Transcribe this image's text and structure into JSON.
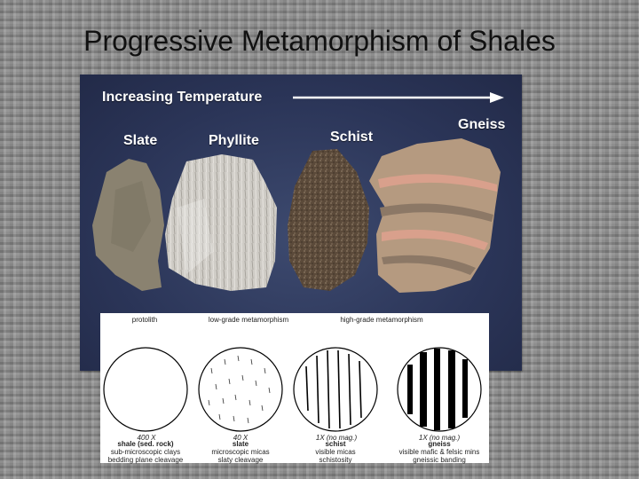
{
  "slide": {
    "title": "Progressive Metamorphism of Shales"
  },
  "photo": {
    "temperature_label": "Increasing Temperature",
    "rocks": [
      {
        "name": "Slate",
        "icon": "slate-rock-icon"
      },
      {
        "name": "Phyllite",
        "icon": "phyllite-rock-icon"
      },
      {
        "name": "Schist",
        "icon": "schist-rock-icon"
      },
      {
        "name": "Gneiss",
        "icon": "gneiss-rock-icon"
      }
    ]
  },
  "micrographs": {
    "headers": [
      "protolith",
      "low-grade metamorphism",
      "high-grade metamorphism"
    ],
    "items": [
      {
        "scale": "400 X",
        "name": "shale (sed. rock)",
        "line1": "sub-microscopic clays",
        "line2": "bedding plane cleavage"
      },
      {
        "scale": "40 X",
        "name": "slate",
        "line1": "microscopic micas",
        "line2": "slaty cleavage"
      },
      {
        "scale": "1X (no mag.)",
        "name": "schist",
        "line1": "visible micas",
        "line2": "schistosity"
      },
      {
        "scale": "1X (no mag.)",
        "name": "gneiss",
        "line1": "visible mafic & felsic mins",
        "line2": "gneissic banding"
      }
    ]
  },
  "colors": {
    "panel_background": "#2b3558",
    "slate": "#8a8270",
    "phyllite": "#c9c6c0",
    "schist": "#5a4a3a",
    "gneiss": "#b59a80"
  }
}
